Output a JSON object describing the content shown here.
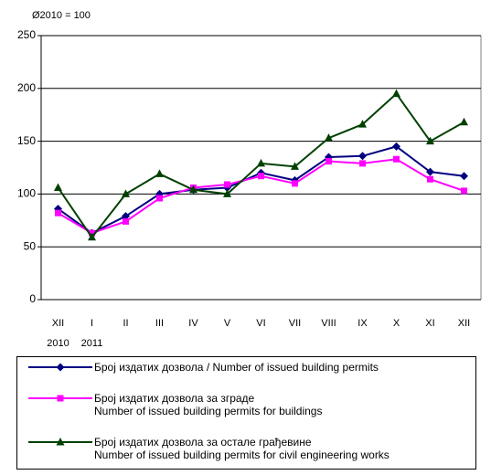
{
  "chart_data": {
    "type": "line",
    "subtitle": "Ø2010 = 100",
    "categories": [
      "XII",
      "I",
      "II",
      "III",
      "IV",
      "V",
      "VI",
      "VII",
      "VIII",
      "IX",
      "X",
      "XI",
      "XII"
    ],
    "category_years": [
      "2010",
      "2011",
      null,
      null,
      null,
      null,
      null,
      null,
      null,
      null,
      null,
      null,
      null
    ],
    "series": [
      {
        "name": "Број издатих дозвола / Number  of  issued building permits",
        "color": "#000080",
        "marker": "diamond",
        "values": [
          86,
          63,
          79,
          100,
          104,
          106,
          120,
          113,
          135,
          136,
          145,
          121,
          117
        ]
      },
      {
        "name": "Број издатих дозвола за зграде\nNumber  of  issued building permits for buildings",
        "color": "#ff00ff",
        "marker": "square",
        "values": [
          82,
          63,
          74,
          96,
          106,
          109,
          117,
          110,
          131,
          129,
          133,
          114,
          103
        ]
      },
      {
        "name": "Број издатих дозвола за остале грађевине\nNumber  of  issued building permits for civil engineering works",
        "color": "#004000",
        "marker": "triangle",
        "values": [
          106,
          59,
          100,
          119,
          104,
          100,
          129,
          126,
          153,
          166,
          195,
          150,
          168
        ]
      }
    ],
    "ylim": [
      0,
      250
    ],
    "yticks": [
      0,
      50,
      100,
      150,
      200,
      250
    ],
    "grid": true
  }
}
